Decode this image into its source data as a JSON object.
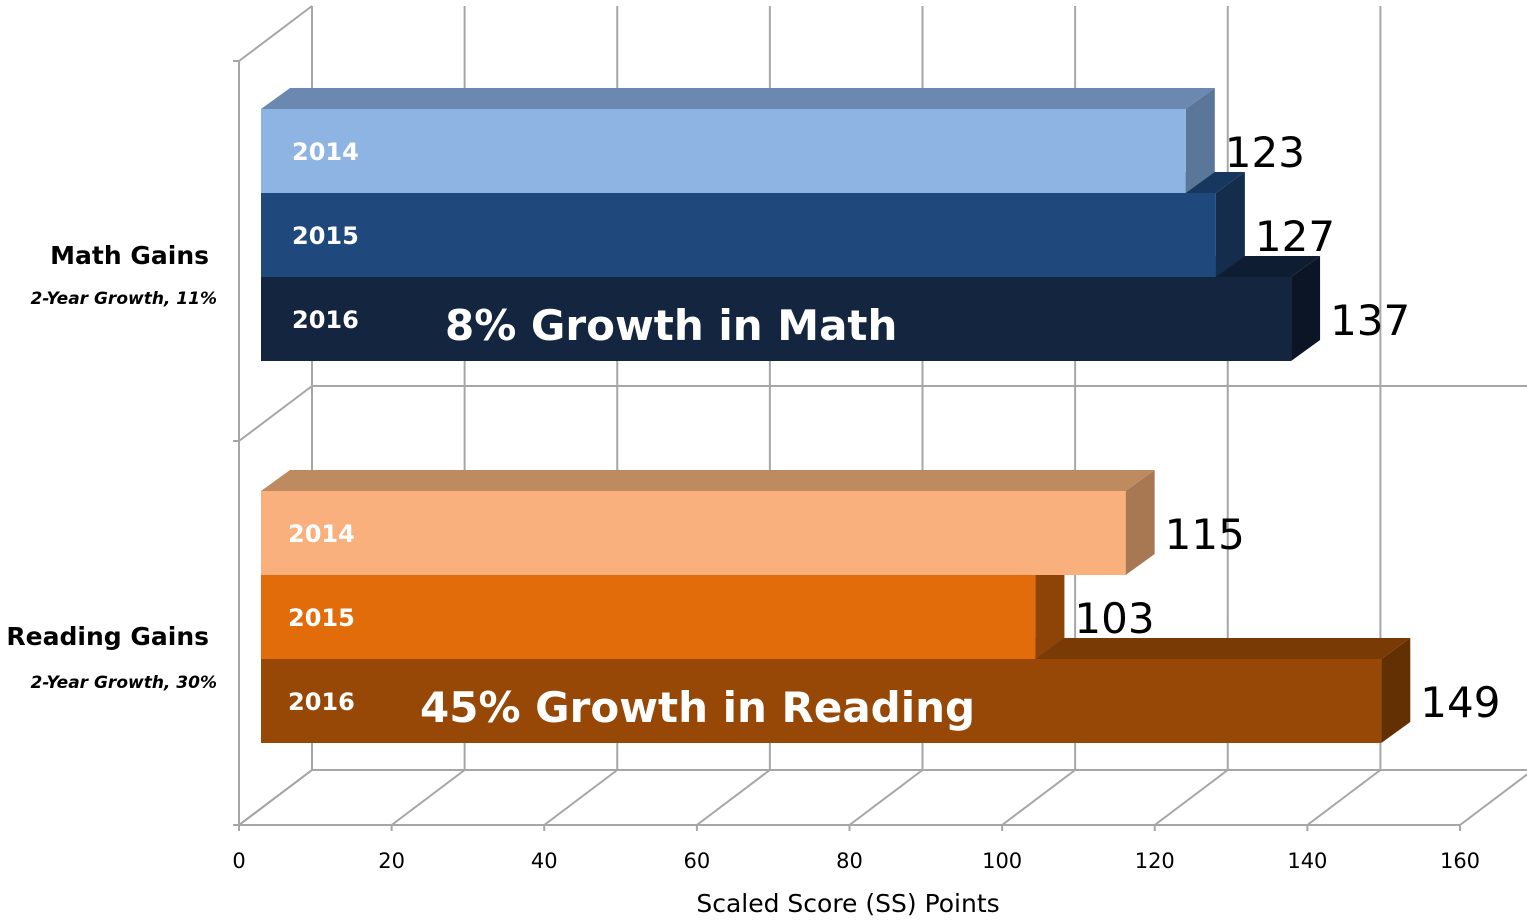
{
  "chart_data": {
    "type": "bar",
    "orientation": "horizontal",
    "three_d": true,
    "xlabel": "Scaled Score (SS) Points",
    "xlim": [
      0,
      160
    ],
    "xticks": [
      0,
      20,
      40,
      60,
      80,
      100,
      120,
      140,
      160
    ],
    "grid": true,
    "groups": [
      {
        "title": "Math Gains",
        "subtitle": "2-Year Growth,  11%",
        "growth_label": "8%  Growth in Math",
        "bars": [
          {
            "year": "2014",
            "value": 123,
            "color": "#8db4e2",
            "top": "#6a88b0",
            "side": "#5a7698"
          },
          {
            "year": "2015",
            "value": 127,
            "color": "#1f497d",
            "top": "#17375e",
            "side": "#142d4d"
          },
          {
            "year": "2016",
            "value": 137,
            "color": "#142540",
            "top": "#0f1d33",
            "side": "#0b1526"
          }
        ]
      },
      {
        "title": "Reading Gains",
        "subtitle": "2-Year Growth,  30%",
        "growth_label": "45% Growth in Reading",
        "bars": [
          {
            "year": "2014",
            "value": 115,
            "color": "#fab07c",
            "top": "#be8a60",
            "side": "#a87853"
          },
          {
            "year": "2015",
            "value": 103,
            "color": "#e36c0a",
            "top": "#a64f08",
            "side": "#8f4407"
          },
          {
            "year": "2016",
            "value": 149,
            "color": "#974806",
            "top": "#7a3a05",
            "side": "#633004"
          }
        ]
      }
    ]
  }
}
